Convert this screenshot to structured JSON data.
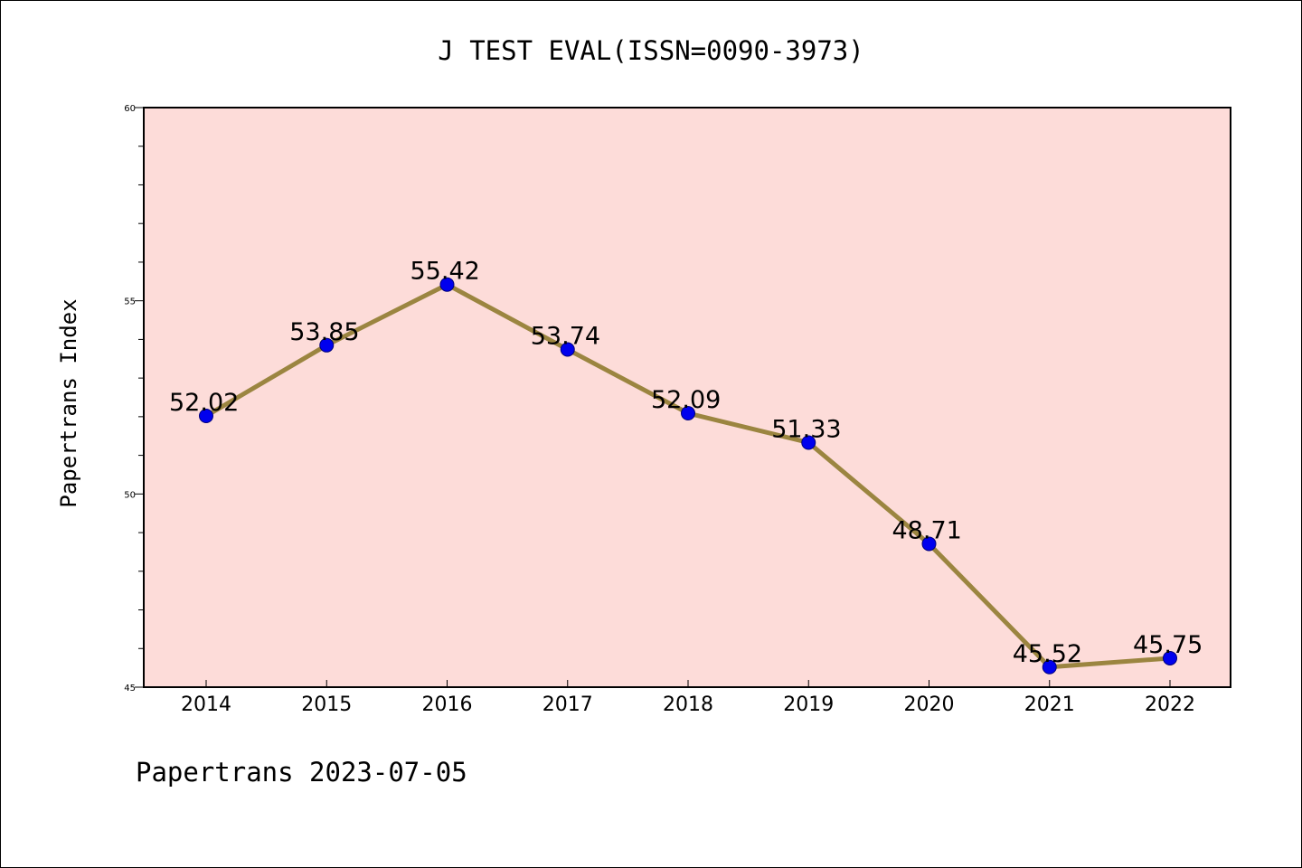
{
  "chart_data": {
    "type": "line",
    "title": "J TEST EVAL(ISSN=0090-3973)",
    "ylabel": "Papertrans Index",
    "xlabel": "",
    "x": [
      "2014",
      "2015",
      "2016",
      "2017",
      "2018",
      "2019",
      "2020",
      "2021",
      "2022"
    ],
    "values": [
      52.02,
      53.85,
      55.42,
      53.74,
      52.09,
      51.33,
      48.71,
      45.52,
      45.75
    ],
    "data_labels": [
      "52.02",
      "53.85",
      "55.42",
      "53.74",
      "52.09",
      "51.33",
      "48.71",
      "45.52",
      "45.75"
    ],
    "ylim": [
      45,
      60
    ],
    "y_ticks": [
      45,
      50,
      55,
      60
    ],
    "y_tick_labels": [
      "45",
      "50",
      "55",
      "60"
    ],
    "grid": false,
    "legend": "none",
    "colors": {
      "plot_background": "#fddcd9",
      "line": "#9b8540",
      "marker": "#0000ee",
      "marker_edge": "#00007a"
    }
  },
  "footer": {
    "text": "Papertrans 2023-07-05"
  }
}
